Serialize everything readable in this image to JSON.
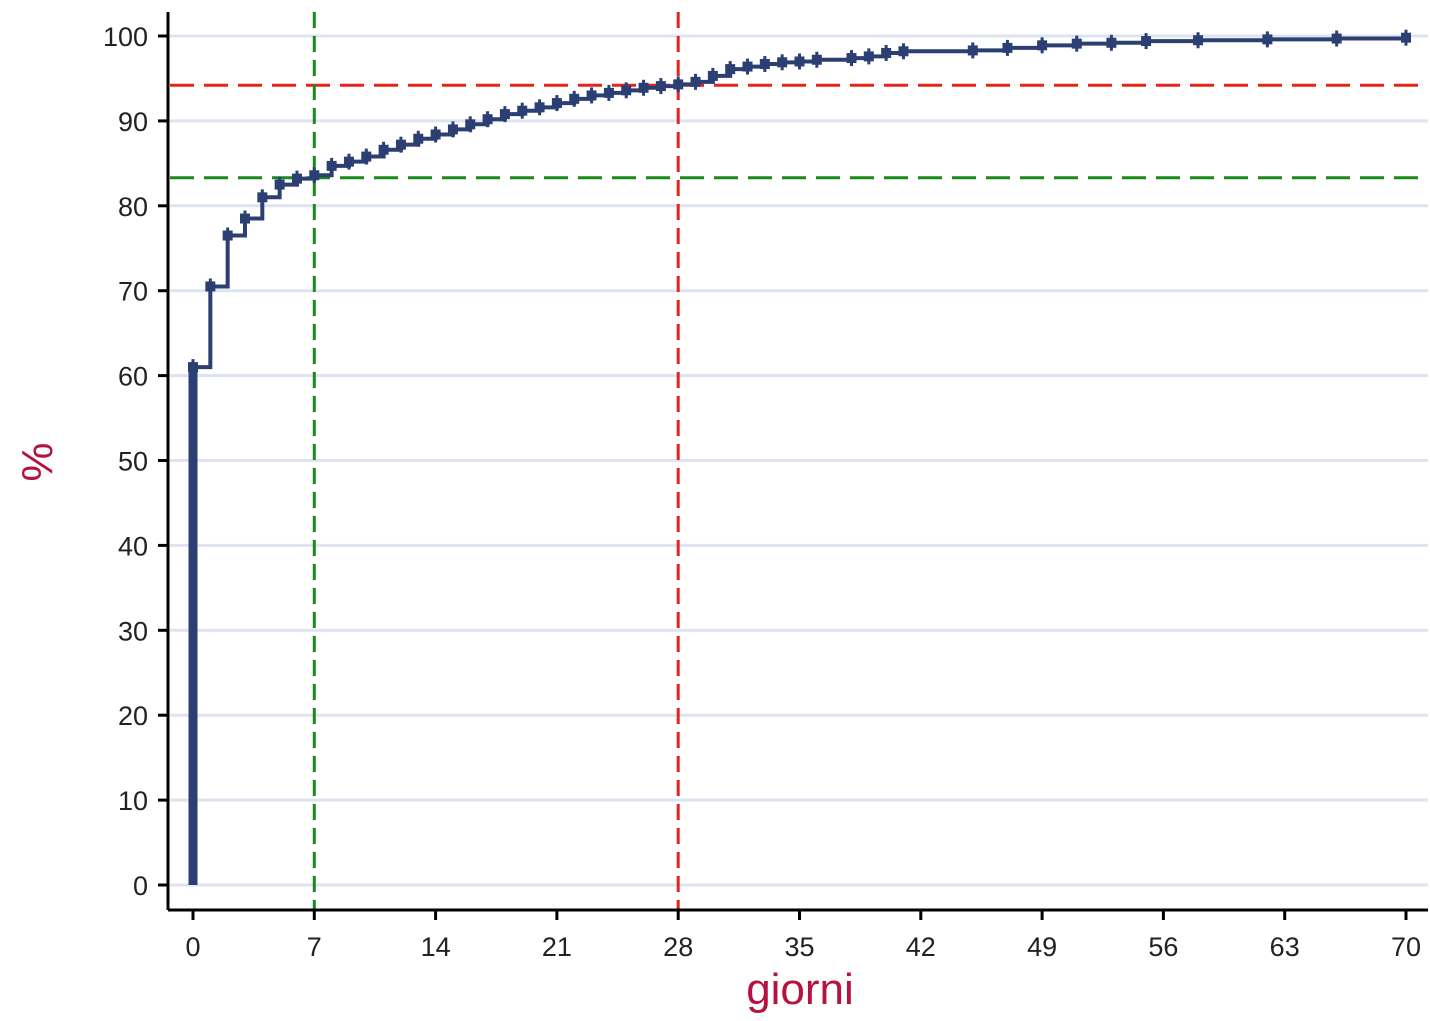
{
  "chart_data": {
    "type": "line",
    "step": true,
    "xlabel": "giorni",
    "ylabel": "%",
    "xlim": [
      0,
      70
    ],
    "ylim": [
      0,
      100
    ],
    "xticks": [
      0,
      7,
      14,
      21,
      28,
      35,
      42,
      49,
      56,
      63,
      70
    ],
    "yticks": [
      0,
      10,
      20,
      30,
      40,
      50,
      60,
      70,
      80,
      90,
      100
    ],
    "grid": true,
    "colors": {
      "series": "#2b3f73",
      "reference_green": "#1a8a1a",
      "reference_red": "#e8231c",
      "axis_title": "#b5123f",
      "grid": "#dde3f0"
    },
    "series": [
      {
        "x": [
          0,
          1,
          2,
          3,
          4,
          5,
          6,
          7,
          8,
          9,
          10,
          11,
          12,
          13,
          14,
          15,
          16,
          17,
          18,
          19,
          20,
          21,
          22,
          23,
          24,
          25,
          26,
          27,
          28,
          29,
          30,
          31,
          32,
          33,
          34,
          35,
          36,
          38,
          39,
          40,
          41,
          45,
          47,
          49,
          51,
          53,
          55,
          58,
          62,
          66,
          70
        ],
        "y": [
          61,
          70.5,
          76.5,
          78.5,
          81,
          82.5,
          83.2,
          83.6,
          84.7,
          85.2,
          85.8,
          86.6,
          87.2,
          87.9,
          88.4,
          89,
          89.6,
          90.2,
          90.8,
          91.2,
          91.6,
          92.1,
          92.6,
          93,
          93.3,
          93.6,
          93.9,
          94.1,
          94.3,
          94.6,
          95.3,
          96.1,
          96.4,
          96.7,
          96.9,
          97,
          97.2,
          97.4,
          97.6,
          98,
          98.2,
          98.3,
          98.6,
          98.9,
          99.1,
          99.2,
          99.4,
          99.5,
          99.6,
          99.7,
          99.8
        ]
      }
    ],
    "reference_lines": {
      "vertical": [
        {
          "x": 7,
          "color": "green"
        },
        {
          "x": 28,
          "color": "red"
        }
      ],
      "horizontal": [
        {
          "y": 83.3,
          "color": "green"
        },
        {
          "y": 94.2,
          "color": "red"
        }
      ]
    }
  }
}
